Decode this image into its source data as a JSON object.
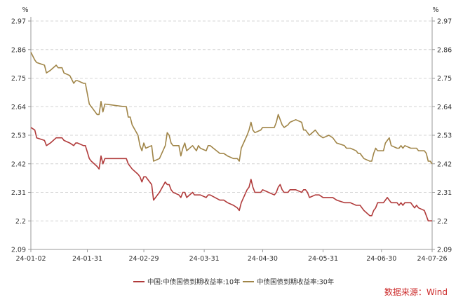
{
  "chart_data": {
    "type": "line",
    "unit_left": "%",
    "unit_right": "%",
    "source": "数据来源：Wind",
    "x_ticks": [
      "24-01-02",
      "24-01-31",
      "24-02-29",
      "24-03-31",
      "24-04-30",
      "24-05-31",
      "24-06-30",
      "24-07-26"
    ],
    "y_ticks": [
      "2.09",
      "2.2",
      "2.31",
      "2.42",
      "2.53",
      "2.64",
      "2.75",
      "2.86",
      "2.97"
    ],
    "ylim": [
      2.09,
      2.97
    ],
    "xlim": [
      "2024-01-02",
      "2024-07-26"
    ],
    "grid": "horizontal dashed",
    "legend_position": "bottom",
    "series": [
      {
        "name": "中国:中债国债到期收益率:10年",
        "color": "#b03a3a",
        "points": [
          [
            "2024-01-02",
            2.56
          ],
          [
            "2024-01-04",
            2.55
          ],
          [
            "2024-01-05",
            2.52
          ],
          [
            "2024-01-09",
            2.51
          ],
          [
            "2024-01-10",
            2.49
          ],
          [
            "2024-01-12",
            2.5
          ],
          [
            "2024-01-15",
            2.52
          ],
          [
            "2024-01-18",
            2.52
          ],
          [
            "2024-01-19",
            2.51
          ],
          [
            "2024-01-22",
            2.5
          ],
          [
            "2024-01-24",
            2.49
          ],
          [
            "2024-01-25",
            2.5
          ],
          [
            "2024-01-26",
            2.5
          ],
          [
            "2024-01-29",
            2.49
          ],
          [
            "2024-01-30",
            2.49
          ],
          [
            "2024-02-01",
            2.44
          ],
          [
            "2024-02-02",
            2.43
          ],
          [
            "2024-02-05",
            2.41
          ],
          [
            "2024-02-06",
            2.4
          ],
          [
            "2024-02-07",
            2.45
          ],
          [
            "2024-02-08",
            2.42
          ],
          [
            "2024-02-09",
            2.44
          ],
          [
            "2024-02-19",
            2.44
          ],
          [
            "2024-02-20",
            2.44
          ],
          [
            "2024-02-21",
            2.42
          ],
          [
            "2024-02-22",
            2.41
          ],
          [
            "2024-02-23",
            2.4
          ],
          [
            "2024-02-26",
            2.38
          ],
          [
            "2024-02-27",
            2.37
          ],
          [
            "2024-02-28",
            2.35
          ],
          [
            "2024-02-29",
            2.37
          ],
          [
            "2024-03-01",
            2.37
          ],
          [
            "2024-03-04",
            2.34
          ],
          [
            "2024-03-05",
            2.28
          ],
          [
            "2024-03-08",
            2.31
          ],
          [
            "2024-03-11",
            2.35
          ],
          [
            "2024-03-12",
            2.34
          ],
          [
            "2024-03-13",
            2.34
          ],
          [
            "2024-03-14",
            2.32
          ],
          [
            "2024-03-15",
            2.31
          ],
          [
            "2024-03-18",
            2.3
          ],
          [
            "2024-03-19",
            2.29
          ],
          [
            "2024-03-20",
            2.31
          ],
          [
            "2024-03-21",
            2.31
          ],
          [
            "2024-03-22",
            2.29
          ],
          [
            "2024-03-25",
            2.31
          ],
          [
            "2024-03-26",
            2.3
          ],
          [
            "2024-03-27",
            2.3
          ],
          [
            "2024-03-28",
            2.3
          ],
          [
            "2024-03-29",
            2.3
          ],
          [
            "2024-04-01",
            2.29
          ],
          [
            "2024-04-02",
            2.3
          ],
          [
            "2024-04-03",
            2.3
          ],
          [
            "2024-04-08",
            2.28
          ],
          [
            "2024-04-10",
            2.28
          ],
          [
            "2024-04-12",
            2.27
          ],
          [
            "2024-04-15",
            2.26
          ],
          [
            "2024-04-17",
            2.25
          ],
          [
            "2024-04-18",
            2.24
          ],
          [
            "2024-04-19",
            2.27
          ],
          [
            "2024-04-22",
            2.32
          ],
          [
            "2024-04-23",
            2.33
          ],
          [
            "2024-04-24",
            2.36
          ],
          [
            "2024-04-25",
            2.33
          ],
          [
            "2024-04-26",
            2.31
          ],
          [
            "2024-04-29",
            2.31
          ],
          [
            "2024-04-30",
            2.32
          ],
          [
            "2024-05-06",
            2.3
          ],
          [
            "2024-05-07",
            2.31
          ],
          [
            "2024-05-08",
            2.33
          ],
          [
            "2024-05-09",
            2.34
          ],
          [
            "2024-05-10",
            2.32
          ],
          [
            "2024-05-11",
            2.31
          ],
          [
            "2024-05-13",
            2.31
          ],
          [
            "2024-05-14",
            2.32
          ],
          [
            "2024-05-17",
            2.32
          ],
          [
            "2024-05-20",
            2.31
          ],
          [
            "2024-05-21",
            2.32
          ],
          [
            "2024-05-22",
            2.32
          ],
          [
            "2024-05-23",
            2.31
          ],
          [
            "2024-05-24",
            2.29
          ],
          [
            "2024-05-27",
            2.3
          ],
          [
            "2024-05-28",
            2.3
          ],
          [
            "2024-05-29",
            2.3
          ],
          [
            "2024-05-31",
            2.29
          ],
          [
            "2024-06-03",
            2.29
          ],
          [
            "2024-06-05",
            2.29
          ],
          [
            "2024-06-07",
            2.28
          ],
          [
            "2024-06-11",
            2.27
          ],
          [
            "2024-06-12",
            2.27
          ],
          [
            "2024-06-14",
            2.27
          ],
          [
            "2024-06-17",
            2.26
          ],
          [
            "2024-06-18",
            2.26
          ],
          [
            "2024-06-19",
            2.26
          ],
          [
            "2024-06-20",
            2.25
          ],
          [
            "2024-06-21",
            2.24
          ],
          [
            "2024-06-24",
            2.22
          ],
          [
            "2024-06-25",
            2.22
          ],
          [
            "2024-06-26",
            2.24
          ],
          [
            "2024-06-27",
            2.25
          ],
          [
            "2024-06-28",
            2.27
          ],
          [
            "2024-07-01",
            2.27
          ],
          [
            "2024-07-02",
            2.28
          ],
          [
            "2024-07-03",
            2.29
          ],
          [
            "2024-07-04",
            2.28
          ],
          [
            "2024-07-05",
            2.27
          ],
          [
            "2024-07-08",
            2.27
          ],
          [
            "2024-07-09",
            2.26
          ],
          [
            "2024-07-10",
            2.27
          ],
          [
            "2024-07-11",
            2.26
          ],
          [
            "2024-07-12",
            2.27
          ],
          [
            "2024-07-15",
            2.27
          ],
          [
            "2024-07-16",
            2.26
          ],
          [
            "2024-07-17",
            2.25
          ],
          [
            "2024-07-18",
            2.26
          ],
          [
            "2024-07-19",
            2.25
          ],
          [
            "2024-07-22",
            2.24
          ],
          [
            "2024-07-23",
            2.22
          ],
          [
            "2024-07-24",
            2.2
          ],
          [
            "2024-07-25",
            2.2
          ],
          [
            "2024-07-26",
            2.2
          ]
        ]
      },
      {
        "name": "中债国债到期收益率:30年",
        "color": "#a08548",
        "points": [
          [
            "2024-01-02",
            2.85
          ],
          [
            "2024-01-04",
            2.82
          ],
          [
            "2024-01-05",
            2.81
          ],
          [
            "2024-01-09",
            2.8
          ],
          [
            "2024-01-10",
            2.77
          ],
          [
            "2024-01-12",
            2.78
          ],
          [
            "2024-01-15",
            2.8
          ],
          [
            "2024-01-16",
            2.79
          ],
          [
            "2024-01-18",
            2.79
          ],
          [
            "2024-01-19",
            2.77
          ],
          [
            "2024-01-22",
            2.76
          ],
          [
            "2024-01-24",
            2.73
          ],
          [
            "2024-01-25",
            2.74
          ],
          [
            "2024-01-26",
            2.74
          ],
          [
            "2024-01-29",
            2.73
          ],
          [
            "2024-01-30",
            2.73
          ],
          [
            "2024-02-01",
            2.65
          ],
          [
            "2024-02-02",
            2.64
          ],
          [
            "2024-02-05",
            2.61
          ],
          [
            "2024-02-06",
            2.61
          ],
          [
            "2024-02-07",
            2.66
          ],
          [
            "2024-02-08",
            2.62
          ],
          [
            "2024-02-09",
            2.65
          ],
          [
            "2024-02-19",
            2.64
          ],
          [
            "2024-02-20",
            2.64
          ],
          [
            "2024-02-21",
            2.6
          ],
          [
            "2024-02-22",
            2.6
          ],
          [
            "2024-02-23",
            2.57
          ],
          [
            "2024-02-26",
            2.53
          ],
          [
            "2024-02-27",
            2.49
          ],
          [
            "2024-02-28",
            2.47
          ],
          [
            "2024-02-29",
            2.5
          ],
          [
            "2024-03-01",
            2.48
          ],
          [
            "2024-03-04",
            2.49
          ],
          [
            "2024-03-05",
            2.43
          ],
          [
            "2024-03-08",
            2.44
          ],
          [
            "2024-03-11",
            2.49
          ],
          [
            "2024-03-12",
            2.54
          ],
          [
            "2024-03-13",
            2.53
          ],
          [
            "2024-03-14",
            2.5
          ],
          [
            "2024-03-15",
            2.49
          ],
          [
            "2024-03-18",
            2.49
          ],
          [
            "2024-03-19",
            2.45
          ],
          [
            "2024-03-20",
            2.48
          ],
          [
            "2024-03-21",
            2.5
          ],
          [
            "2024-03-22",
            2.47
          ],
          [
            "2024-03-25",
            2.49
          ],
          [
            "2024-03-26",
            2.48
          ],
          [
            "2024-03-27",
            2.47
          ],
          [
            "2024-03-28",
            2.49
          ],
          [
            "2024-03-29",
            2.48
          ],
          [
            "2024-04-01",
            2.47
          ],
          [
            "2024-04-02",
            2.49
          ],
          [
            "2024-04-03",
            2.49
          ],
          [
            "2024-04-08",
            2.46
          ],
          [
            "2024-04-10",
            2.46
          ],
          [
            "2024-04-12",
            2.45
          ],
          [
            "2024-04-15",
            2.44
          ],
          [
            "2024-04-17",
            2.44
          ],
          [
            "2024-04-18",
            2.43
          ],
          [
            "2024-04-19",
            2.48
          ],
          [
            "2024-04-22",
            2.53
          ],
          [
            "2024-04-23",
            2.55
          ],
          [
            "2024-04-24",
            2.58
          ],
          [
            "2024-04-25",
            2.55
          ],
          [
            "2024-04-26",
            2.54
          ],
          [
            "2024-04-29",
            2.55
          ],
          [
            "2024-04-30",
            2.56
          ],
          [
            "2024-05-06",
            2.56
          ],
          [
            "2024-05-07",
            2.58
          ],
          [
            "2024-05-08",
            2.61
          ],
          [
            "2024-05-09",
            2.59
          ],
          [
            "2024-05-10",
            2.57
          ],
          [
            "2024-05-11",
            2.56
          ],
          [
            "2024-05-13",
            2.57
          ],
          [
            "2024-05-14",
            2.58
          ],
          [
            "2024-05-17",
            2.59
          ],
          [
            "2024-05-20",
            2.58
          ],
          [
            "2024-05-21",
            2.55
          ],
          [
            "2024-05-22",
            2.55
          ],
          [
            "2024-05-23",
            2.54
          ],
          [
            "2024-05-24",
            2.53
          ],
          [
            "2024-05-27",
            2.55
          ],
          [
            "2024-05-28",
            2.54
          ],
          [
            "2024-05-29",
            2.53
          ],
          [
            "2024-05-31",
            2.52
          ],
          [
            "2024-06-03",
            2.53
          ],
          [
            "2024-06-05",
            2.52
          ],
          [
            "2024-06-07",
            2.5
          ],
          [
            "2024-06-11",
            2.49
          ],
          [
            "2024-06-12",
            2.48
          ],
          [
            "2024-06-14",
            2.48
          ],
          [
            "2024-06-17",
            2.47
          ],
          [
            "2024-06-18",
            2.46
          ],
          [
            "2024-06-19",
            2.46
          ],
          [
            "2024-06-20",
            2.45
          ],
          [
            "2024-06-21",
            2.44
          ],
          [
            "2024-06-24",
            2.43
          ],
          [
            "2024-06-25",
            2.43
          ],
          [
            "2024-06-26",
            2.46
          ],
          [
            "2024-06-27",
            2.48
          ],
          [
            "2024-06-28",
            2.47
          ],
          [
            "2024-07-01",
            2.47
          ],
          [
            "2024-07-02",
            2.5
          ],
          [
            "2024-07-03",
            2.51
          ],
          [
            "2024-07-04",
            2.52
          ],
          [
            "2024-07-05",
            2.49
          ],
          [
            "2024-07-08",
            2.48
          ],
          [
            "2024-07-09",
            2.48
          ],
          [
            "2024-07-10",
            2.49
          ],
          [
            "2024-07-11",
            2.48
          ],
          [
            "2024-07-12",
            2.49
          ],
          [
            "2024-07-15",
            2.48
          ],
          [
            "2024-07-16",
            2.48
          ],
          [
            "2024-07-17",
            2.48
          ],
          [
            "2024-07-18",
            2.48
          ],
          [
            "2024-07-19",
            2.47
          ],
          [
            "2024-07-22",
            2.47
          ],
          [
            "2024-07-23",
            2.46
          ],
          [
            "2024-07-24",
            2.43
          ],
          [
            "2024-07-25",
            2.43
          ],
          [
            "2024-07-26",
            2.42
          ]
        ]
      }
    ]
  }
}
